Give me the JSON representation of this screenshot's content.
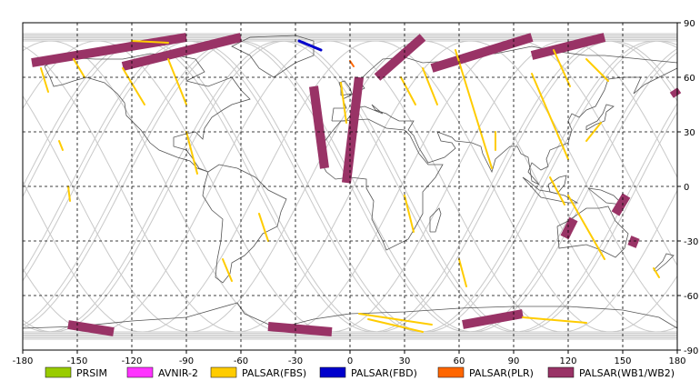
{
  "map": {
    "x_ticks": [
      "-180",
      "-150",
      "-120",
      "-90",
      "-60",
      "-30",
      "0",
      "30",
      "60",
      "90",
      "120",
      "150",
      "180"
    ],
    "y_ticks": [
      "90",
      "60",
      "30",
      "0",
      "-30",
      "-60",
      "-90"
    ],
    "lon_range": [
      -180,
      180
    ],
    "lat_range": [
      -90,
      90
    ],
    "grid": "dashed",
    "land_outline_color": "#555555",
    "orbit_track_color": "#c8c8c8"
  },
  "legend": {
    "items": [
      {
        "label": "PRSIM",
        "color": "#99cc00"
      },
      {
        "label": "AVNIR-2",
        "color": "#ff33ff"
      },
      {
        "label": "PALSAR(FBS)",
        "color": "#ffcc00"
      },
      {
        "label": "PALSAR(FBD)",
        "color": "#0000cc"
      },
      {
        "label": "PALSAR(PLR)",
        "color": "#ff6600"
      },
      {
        "label": "PALSAR(WB1/WB2)",
        "color": "#993366"
      }
    ]
  },
  "coverage": {
    "wb_swaths": [
      {
        "lon1": -175,
        "lat1": 68,
        "lon2": -90,
        "lat2": 82
      },
      {
        "lon1": -125,
        "lat1": 66,
        "lon2": -60,
        "lat2": 82
      },
      {
        "lon1": -20,
        "lat1": 55,
        "lon2": -14,
        "lat2": 10
      },
      {
        "lon1": 5,
        "lat1": 60,
        "lon2": -2,
        "lat2": 2
      },
      {
        "lon1": 15,
        "lat1": 60,
        "lon2": 40,
        "lat2": 82
      },
      {
        "lon1": 45,
        "lat1": 65,
        "lon2": 100,
        "lat2": 82
      },
      {
        "lon1": 100,
        "lat1": 72,
        "lon2": 140,
        "lat2": 82
      },
      {
        "lon1": 152,
        "lat1": -5,
        "lon2": 146,
        "lat2": -15
      },
      {
        "lon1": 123,
        "lat1": -18,
        "lon2": 118,
        "lat2": -28
      },
      {
        "lon1": 157,
        "lat1": -28,
        "lon2": 155,
        "lat2": -33
      },
      {
        "lon1": 178,
        "lat1": 53,
        "lon2": 180,
        "lat2": 50
      },
      {
        "lon1": -155,
        "lat1": -76,
        "lon2": -130,
        "lat2": -80
      },
      {
        "lon1": -45,
        "lat1": -77,
        "lon2": -10,
        "lat2": -80
      },
      {
        "lon1": 62,
        "lat1": -76,
        "lon2": 95,
        "lat2": -70
      }
    ],
    "fbs_segments": [
      {
        "lon1": -170,
        "lat1": 65,
        "lon2": -166,
        "lat2": 52
      },
      {
        "lon1": -152,
        "lat1": 70,
        "lon2": -146,
        "lat2": 60
      },
      {
        "lon1": -125,
        "lat1": 65,
        "lon2": -113,
        "lat2": 45
      },
      {
        "lon1": -100,
        "lat1": 70,
        "lon2": -90,
        "lat2": 45
      },
      {
        "lon1": -120,
        "lat1": 80,
        "lon2": -100,
        "lat2": 79
      },
      {
        "lon1": -90,
        "lat1": 30,
        "lon2": -84,
        "lat2": 7
      },
      {
        "lon1": -50,
        "lat1": -15,
        "lon2": -45,
        "lat2": -30
      },
      {
        "lon1": -70,
        "lat1": -40,
        "lon2": -65,
        "lat2": -52
      },
      {
        "lon1": -160,
        "lat1": 25,
        "lon2": -158,
        "lat2": 20
      },
      {
        "lon1": -155,
        "lat1": 0,
        "lon2": -154,
        "lat2": -8
      },
      {
        "lon1": -5,
        "lat1": 57,
        "lon2": -2,
        "lat2": 35
      },
      {
        "lon1": 28,
        "lat1": 60,
        "lon2": 36,
        "lat2": 45
      },
      {
        "lon1": 40,
        "lat1": 65,
        "lon2": 48,
        "lat2": 45
      },
      {
        "lon1": 58,
        "lat1": 75,
        "lon2": 78,
        "lat2": 10
      },
      {
        "lon1": 80,
        "lat1": 30,
        "lon2": 80,
        "lat2": 20
      },
      {
        "lon1": 100,
        "lat1": 62,
        "lon2": 120,
        "lat2": 15
      },
      {
        "lon1": 112,
        "lat1": 75,
        "lon2": 121,
        "lat2": 55
      },
      {
        "lon1": 130,
        "lat1": 70,
        "lon2": 142,
        "lat2": 58
      },
      {
        "lon1": 138,
        "lat1": 35,
        "lon2": 130,
        "lat2": 25
      },
      {
        "lon1": 120,
        "lat1": -5,
        "lon2": 140,
        "lat2": -40
      },
      {
        "lon1": 30,
        "lat1": -5,
        "lon2": 35,
        "lat2": -25
      },
      {
        "lon1": 110,
        "lat1": 5,
        "lon2": 118,
        "lat2": -10
      },
      {
        "lon1": 167,
        "lat1": -45,
        "lon2": 170,
        "lat2": -50
      },
      {
        "lon1": 5,
        "lat1": -70,
        "lon2": 45,
        "lat2": -76
      },
      {
        "lon1": 10,
        "lat1": -73,
        "lon2": 40,
        "lat2": -80
      },
      {
        "lon1": 95,
        "lat1": -72,
        "lon2": 130,
        "lat2": -75
      },
      {
        "lon1": 60,
        "lat1": -40,
        "lon2": 64,
        "lat2": -55
      }
    ],
    "fbd_segments": [
      {
        "lon1": -28,
        "lat1": 80,
        "lon2": -16,
        "lat2": 75
      }
    ],
    "plr_segments": [
      {
        "lon1": 0,
        "lat1": 69,
        "lon2": 2,
        "lat2": 66
      }
    ]
  }
}
